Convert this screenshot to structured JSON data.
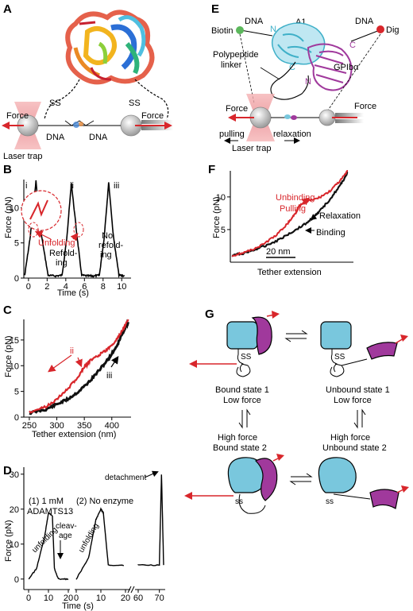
{
  "panels": {
    "A": {
      "letter": "A",
      "ss_left": "SS",
      "ss_right": "SS",
      "force_left": "Force",
      "force_right": "Force",
      "dna_left": "DNA",
      "dna_right": "DNA",
      "trap": "Laser trap"
    },
    "B": {
      "letter": "B",
      "ylabel": "Force (pN)",
      "xlabel": "Time (s)",
      "yticks": [
        "0",
        "5",
        "10"
      ],
      "xticks": [
        "0",
        "2",
        "4",
        "6",
        "8",
        "10"
      ],
      "peaks": [
        "i",
        "ii",
        "iii"
      ],
      "unfolding": "Unfolding",
      "refolding_1": "Refold-",
      "refolding_2": "ing",
      "norefold_1": "No",
      "norefold_2": "refold-",
      "norefold_3": "ing"
    },
    "C": {
      "letter": "C",
      "ylabel": "Force (pN)",
      "xlabel": "Tether extension (nm)",
      "yticks": [
        "0",
        "5",
        "10",
        "15"
      ],
      "xticks": [
        "250",
        "300",
        "350",
        "400"
      ],
      "label_i": "i",
      "label_ii": "ii",
      "label_iii": "iii"
    },
    "D": {
      "letter": "D",
      "ylabel": "Force (pN)",
      "xlabel": "Time (s)",
      "yticks": [
        "0",
        "10",
        "20",
        "30"
      ],
      "xticks": [
        "0",
        "10",
        "20",
        "0",
        "10",
        "20",
        "60",
        "70"
      ],
      "cond1_a": "(1) 1 mM",
      "cond1_b": "ADAMTS13",
      "cond2": "(2) No enzyme",
      "unfolding_1": "unfolding",
      "unfolding_2": "unfolding",
      "cleavage_1": "cleav-",
      "cleavage_2": "age",
      "detachment": "detachment"
    },
    "E": {
      "letter": "E",
      "a1": "A1",
      "dna_left": "DNA",
      "dna_right": "DNA",
      "biotin": "Biotin",
      "dig": "Dig",
      "linker_1": "Polypeptide",
      "linker_2": "linker",
      "gpib": "GPIbα",
      "n1": "N",
      "c1": "C",
      "n2": "N",
      "c2": "C",
      "force_left": "Force",
      "force_right": "Force",
      "pulling": "pulling",
      "relaxation": "relaxation",
      "trap": "Laser trap"
    },
    "F": {
      "letter": "F",
      "ylabel": "Force (pN)",
      "xlabel": "Tether extension",
      "yticks": [
        "5",
        "10"
      ],
      "scalebar": "20 nm",
      "unbinding": "Unbinding",
      "pulling": "Pulling",
      "relaxation": "Relaxation",
      "binding": "Binding"
    },
    "G": {
      "letter": "G",
      "bound1_a": "Bound state 1",
      "bound1_b": "Low force",
      "unbound1_a": "Unbound state 1",
      "unbound1_b": "Low force",
      "bound2_a": "High force",
      "bound2_b": "Bound state 2",
      "unbound2_a": "High force",
      "unbound2_b": "Unbound state 2",
      "ss": "SS",
      "ss_lower": "ss"
    }
  },
  "colors": {
    "red": "#d8262b",
    "cyan": "#79c7dd",
    "magenta": "#a0399c",
    "trap": "#f2a3a6",
    "black": "#000000"
  },
  "chart_data": [
    {
      "panel": "B",
      "type": "line",
      "xlabel": "Time (s)",
      "ylabel": "Force (pN)",
      "xlim": [
        -0.5,
        11
      ],
      "ylim": [
        0,
        14
      ],
      "series": [
        {
          "x": [
            -0.4,
            0.2,
            0.8,
            1.4,
            2.1,
            2.9,
            3.6,
            4.1,
            4.6,
            5.2,
            5.7,
            6.4,
            7.0,
            7.6,
            8.1,
            8.6,
            9.1,
            9.7,
            10.3
          ],
          "y": [
            0.4,
            6.0,
            13.8,
            6.0,
            0.4,
            0.3,
            0.4,
            5.5,
            13.5,
            6.0,
            0.4,
            0.3,
            0.3,
            0.4,
            5.5,
            13.6,
            6.0,
            0.4,
            0.3
          ]
        }
      ]
    },
    {
      "panel": "C",
      "type": "line",
      "xlabel": "Tether extension (nm)",
      "ylabel": "Force (pN)",
      "xlim": [
        240,
        435
      ],
      "ylim": [
        0,
        19
      ],
      "series": [
        {
          "x": [
            250,
            280,
            300,
            320,
            340,
            350,
            355,
            360,
            375,
            390,
            405,
            420,
            430
          ],
          "y": [
            1.0,
            2.0,
            3.5,
            5.5,
            8.0,
            9.8,
            10.2,
            11.0,
            12.0,
            13.0,
            14.5,
            17.0,
            19.0
          ]
        },
        {
          "x": [
            250,
            280,
            300,
            320,
            340,
            360,
            380,
            395,
            410,
            420,
            430
          ],
          "y": [
            0.8,
            1.5,
            2.5,
            3.5,
            5.0,
            7.0,
            9.5,
            11.5,
            14.0,
            16.5,
            18.5
          ]
        }
      ]
    },
    {
      "panel": "D",
      "type": "line",
      "xlabel": "Time (s)",
      "ylabel": "Force (pN)",
      "ylim": [
        -3,
        32
      ],
      "series": [
        {
          "x": [
            0,
            4,
            8,
            10,
            12,
            13,
            15,
            20
          ],
          "y": [
            0,
            3,
            12,
            19,
            18,
            3,
            0,
            0
          ]
        },
        {
          "x": [
            0,
            5,
            8,
            10,
            11,
            13,
            20,
            60,
            70,
            71,
            72
          ],
          "y": [
            0,
            6,
            17,
            20,
            19,
            4,
            4,
            4,
            4,
            30,
            4
          ]
        }
      ]
    },
    {
      "panel": "F",
      "type": "line",
      "xlabel": "Tether extension",
      "ylabel": "Force (pN)",
      "ylim": [
        0,
        14
      ],
      "series": [
        {
          "x": [
            0,
            20,
            40,
            60,
            75,
            85,
            90,
            100,
            115,
            130,
            145,
            155
          ],
          "y": [
            1.0,
            1.6,
            2.6,
            4.2,
            6.0,
            7.5,
            8.6,
            9.3,
            9.8,
            10.8,
            12.5,
            14.0
          ]
        },
        {
          "x": [
            0,
            20,
            40,
            60,
            80,
            100,
            115,
            130,
            145,
            155
          ],
          "y": [
            1.0,
            1.5,
            2.3,
            3.3,
            4.6,
            6.0,
            7.5,
            9.5,
            11.8,
            13.8
          ]
        }
      ]
    }
  ]
}
